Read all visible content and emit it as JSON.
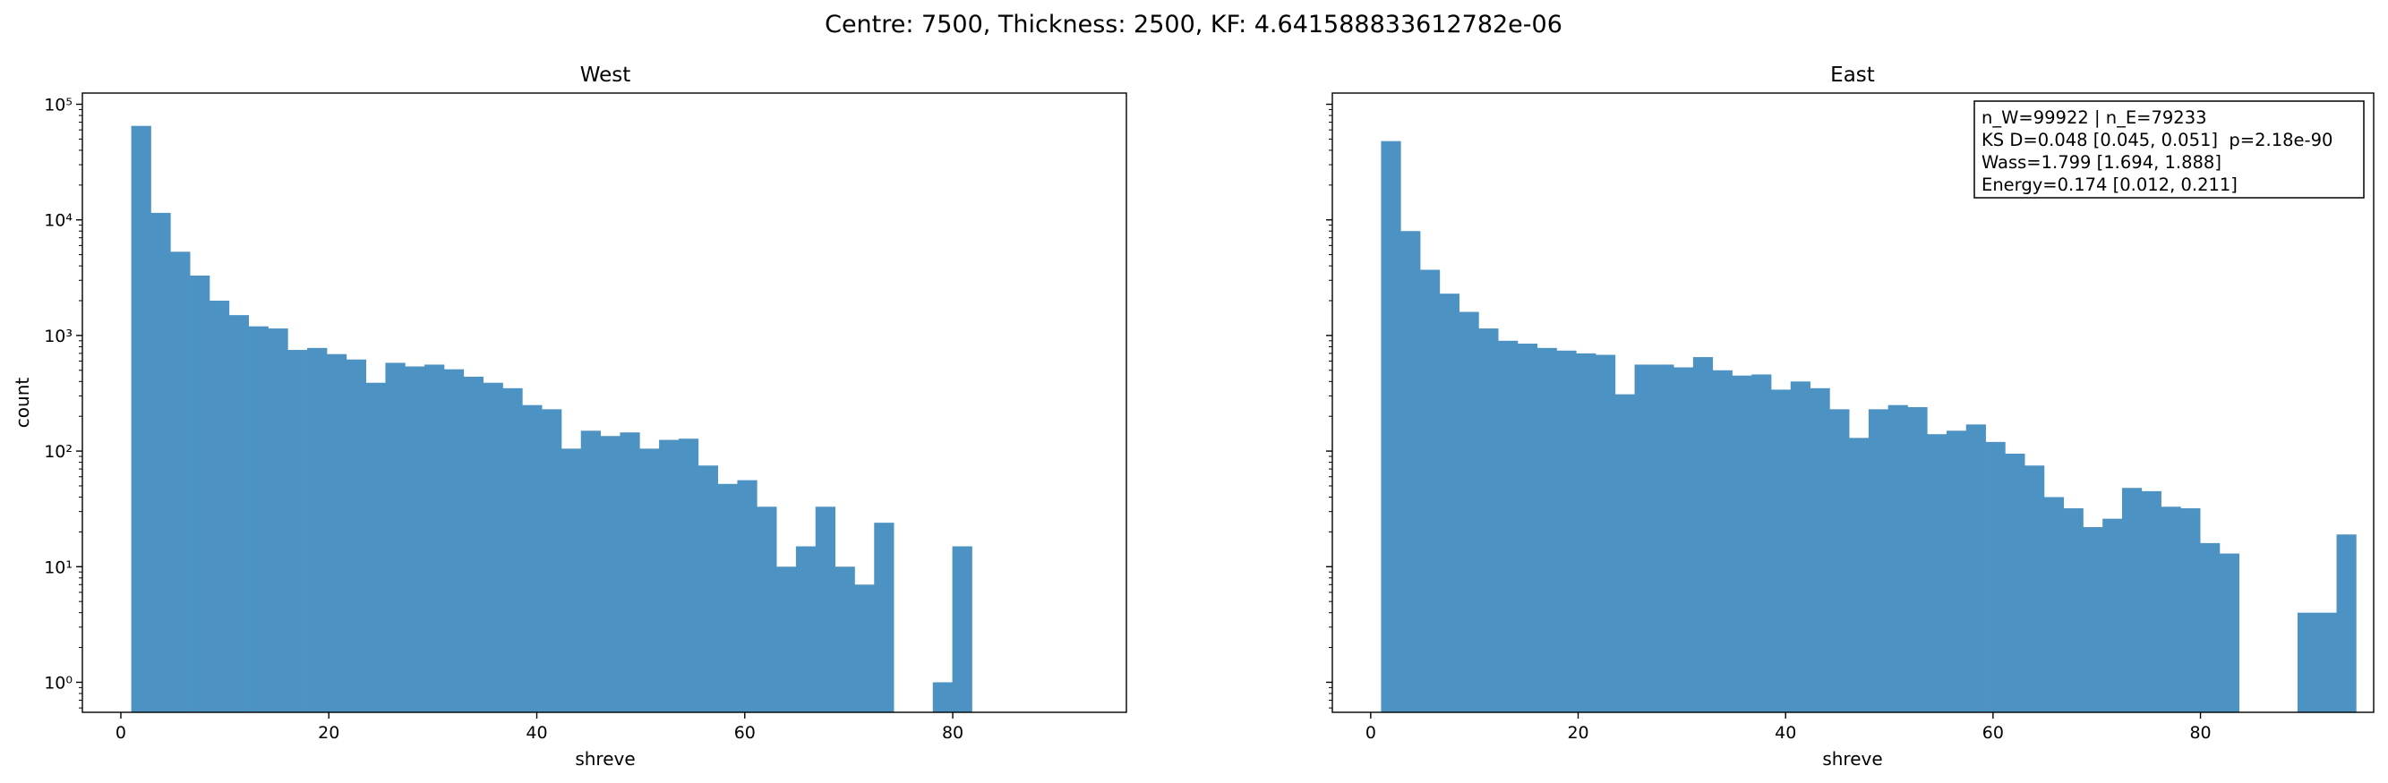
{
  "suptitle": "Centre: 7500, Thickness: 2500, KF: 4.641588833612782e-06",
  "chart_data": [
    {
      "type": "bar",
      "title": "West",
      "xlabel": "shreve",
      "ylabel": "count",
      "yscale": "log",
      "xlim": [
        -3.7,
        96.7
      ],
      "ylim": [
        0.55,
        125000
      ],
      "xticks": [
        "0",
        "20",
        "40",
        "60",
        "80"
      ],
      "xtick_values": [
        0,
        20,
        40,
        60,
        80
      ],
      "yticks": [
        "10⁰",
        "10¹",
        "10²",
        "10³",
        "10⁴",
        "10⁵"
      ],
      "ytick_values": [
        1,
        10,
        100,
        1000,
        10000,
        100000
      ],
      "bin_start": 1,
      "bin_width": 1.88,
      "values": [
        65000,
        11500,
        5300,
        3300,
        2000,
        1500,
        1200,
        1150,
        750,
        780,
        690,
        620,
        390,
        580,
        540,
        560,
        510,
        440,
        390,
        350,
        250,
        230,
        105,
        150,
        135,
        145,
        105,
        125,
        128,
        75,
        52,
        56,
        33,
        10,
        15,
        33,
        10,
        7,
        24,
        0,
        0,
        1,
        15,
        0,
        0,
        0,
        0,
        0,
        0,
        0
      ],
      "bar_color": "#4c93c3"
    },
    {
      "type": "bar",
      "title": "East",
      "xlabel": "shreve",
      "ylabel": "",
      "yscale": "log",
      "xlim": [
        -3.7,
        96.7
      ],
      "ylim": [
        0.55,
        125000
      ],
      "xticks": [
        "0",
        "20",
        "40",
        "60",
        "80"
      ],
      "xtick_values": [
        0,
        20,
        40,
        60,
        80
      ],
      "bin_start": 1,
      "bin_width": 1.88,
      "values": [
        48000,
        8000,
        3700,
        2300,
        1600,
        1150,
        900,
        850,
        780,
        740,
        700,
        680,
        310,
        560,
        560,
        530,
        650,
        500,
        450,
        460,
        340,
        400,
        350,
        230,
        130,
        230,
        250,
        240,
        140,
        150,
        170,
        120,
        95,
        75,
        40,
        32,
        22,
        26,
        48,
        45,
        33,
        32,
        16,
        13,
        0,
        0,
        0,
        4,
        4,
        19
      ],
      "bar_color": "#4c93c3"
    }
  ],
  "stats_box": {
    "lines": [
      "n_W=99922 | n_E=79233",
      "KS D=0.048 [0.045, 0.051]  p=2.18e-90",
      "Wass=1.799 [1.694, 1.888]",
      "Energy=0.174 [0.012, 0.211]"
    ]
  }
}
